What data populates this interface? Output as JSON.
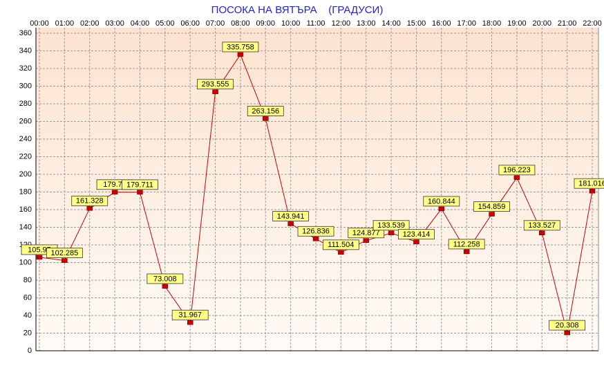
{
  "chart_data": {
    "type": "line",
    "title": "ПОСОКА НА ВЯТЪРА    (ГРАДУСИ)",
    "categories": [
      "00:00",
      "01:00",
      "02:00",
      "03:00",
      "04:00",
      "05:00",
      "06:00",
      "07:00",
      "08:00",
      "09:00",
      "10:00",
      "11:00",
      "12:00",
      "13:00",
      "14:00",
      "15:00",
      "16:00",
      "17:00",
      "18:00",
      "19:00",
      "20:00",
      "21:00",
      "22:00"
    ],
    "series": [
      {
        "name": "ПОСОКА",
        "color": "#cc0000",
        "values": [
          105.95,
          102.285,
          161.328,
          179.76,
          179.711,
          73.008,
          31.967,
          293.555,
          335.758,
          263.156,
          143.941,
          126.836,
          111.504,
          124.877,
          133.539,
          123.414,
          160.844,
          112.258,
          154.859,
          196.223,
          133.527,
          20.308,
          181.016
        ]
      }
    ],
    "ylim": [
      0,
      360
    ],
    "yticks": [
      0,
      20,
      40,
      60,
      80,
      100,
      120,
      140,
      160,
      180,
      200,
      220,
      240,
      260,
      280,
      300,
      320,
      340,
      360
    ],
    "grid": true
  }
}
